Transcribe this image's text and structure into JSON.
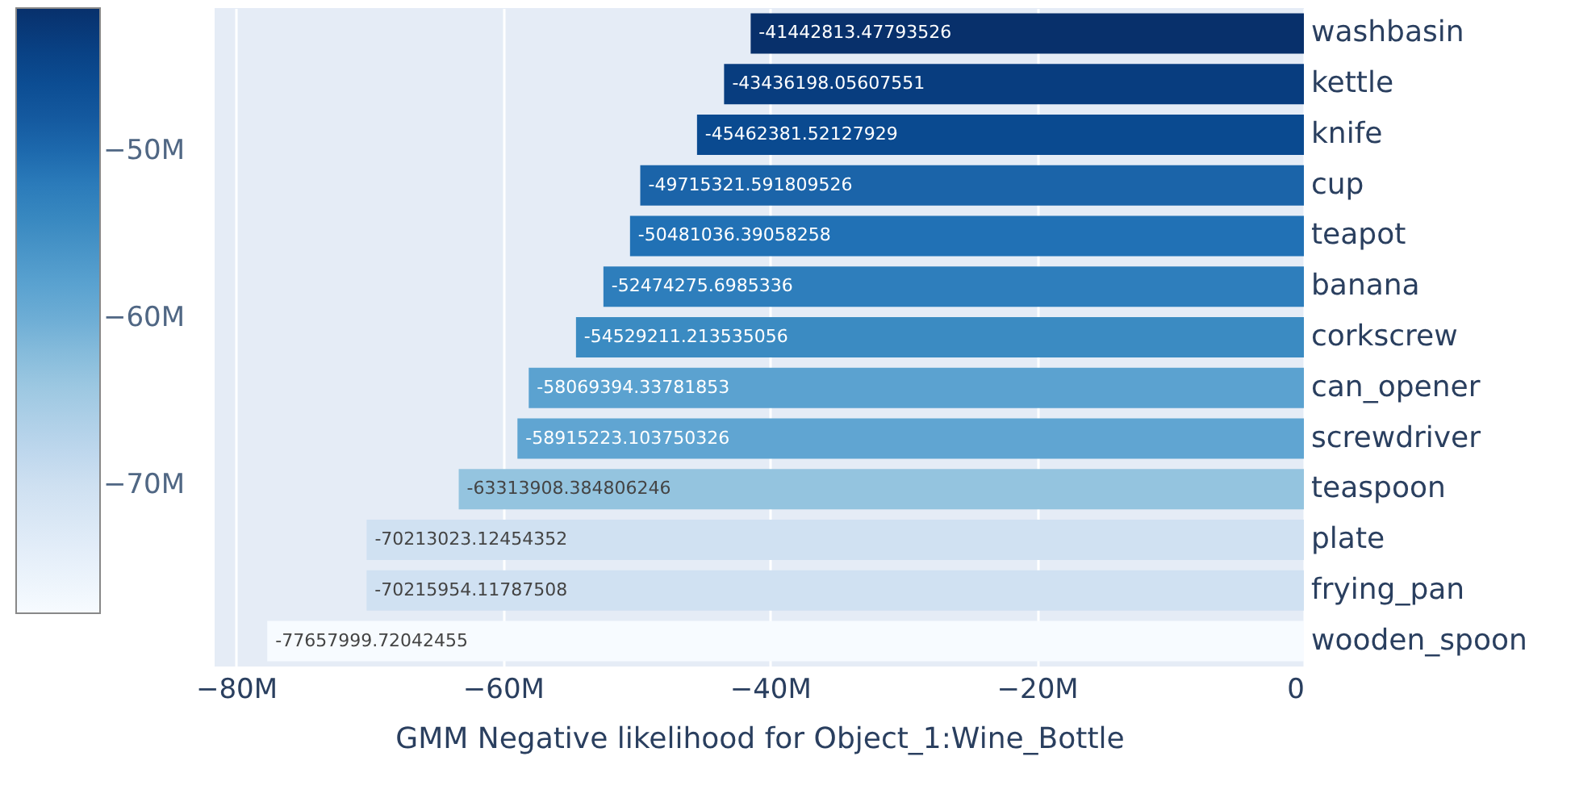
{
  "chart_data": {
    "type": "bar",
    "orientation": "horizontal",
    "xlabel": "GMM Negative likelihood for Object_1:Wine_Bottle",
    "categories": [
      "washbasin",
      "kettle",
      "knife",
      "cup",
      "teapot",
      "banana",
      "corkscrew",
      "can_opener",
      "screwdriver",
      "teaspoon",
      "plate",
      "frying_pan",
      "wooden_spoon"
    ],
    "values": [
      -41442813.47793526,
      -43436198.05607551,
      -45462381.52127929,
      -49715321.591809526,
      -50481036.39058258,
      -52474275.6985336,
      -54529211.213535056,
      -58069394.33781853,
      -58915223.103750326,
      -63313908.384806246,
      -70213023.12454352,
      -70215954.11787508,
      -77657999.72042455
    ],
    "colors": [
      "#08306b",
      "#083d7f",
      "#0a4a90",
      "#1b64a9",
      "#2171b5",
      "#2e7ebc",
      "#3b8bc2",
      "#5ba2d0",
      "#60a5d2",
      "#94c4df",
      "#d0e1f2",
      "#d0e1f2",
      "#f7fbff"
    ],
    "data_labels": true,
    "xlim": [
      -81600000,
      0
    ],
    "xticks": [
      {
        "value": -80000000,
        "label": "−80M"
      },
      {
        "value": -60000000,
        "label": "−60M"
      },
      {
        "value": -40000000,
        "label": "−40M"
      },
      {
        "value": -20000000,
        "label": "−20M"
      },
      0
    ],
    "clim": [
      -77657999.72042455,
      -41442813.47793526
    ],
    "cticks": [
      {
        "value": -50000000,
        "label": "−50M"
      },
      {
        "value": -60000000,
        "label": "−60M"
      },
      {
        "value": -70000000,
        "label": "−70M"
      }
    ],
    "grid": "x"
  }
}
